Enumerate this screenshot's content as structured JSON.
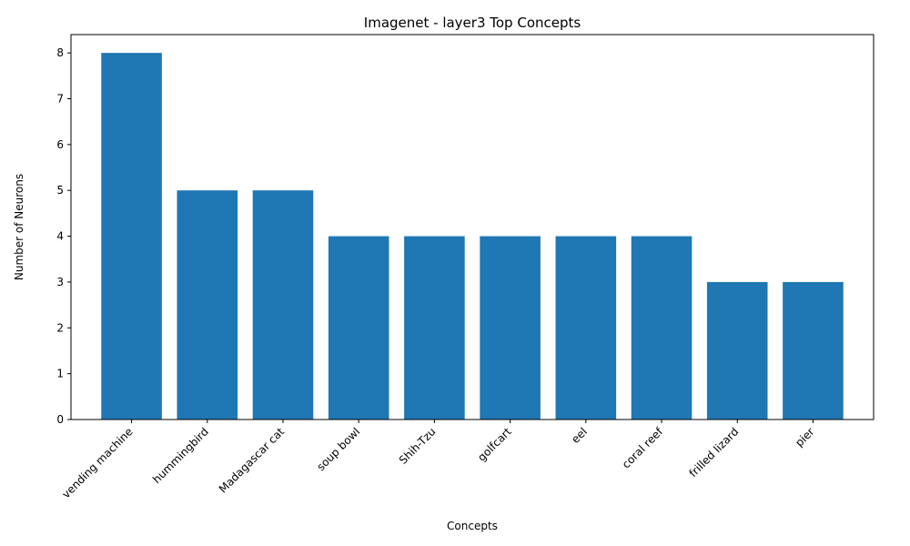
{
  "chart_data": {
    "type": "bar",
    "title": "Imagenet - layer3 Top Concepts",
    "xlabel": "Concepts",
    "ylabel": "Number of Neurons",
    "categories": [
      "vending machine",
      "hummingbird",
      "Madagascar cat",
      "soup bowl",
      "Shih-Tzu",
      "golfcart",
      "eel",
      "coral reef",
      "frilled lizard",
      "pier"
    ],
    "values": [
      8,
      5,
      5,
      4,
      4,
      4,
      4,
      4,
      3,
      3
    ],
    "ylim": [
      0,
      8.4
    ],
    "yticks": [
      0,
      1,
      2,
      3,
      4,
      5,
      6,
      7,
      8
    ],
    "bar_color": "#1f77b4",
    "grid": false,
    "legend": "none"
  }
}
